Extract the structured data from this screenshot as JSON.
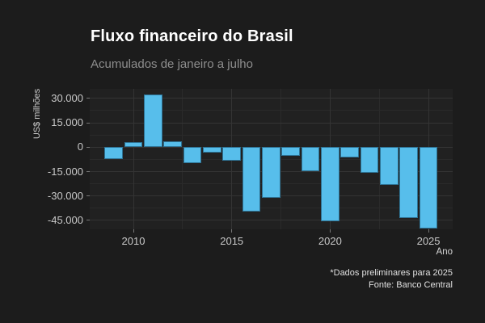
{
  "header": {
    "title": "Fluxo financeiro do Brasil",
    "subtitle": "Acumulados de janeiro a julho"
  },
  "footnote": {
    "line1": "*Dados preliminares para 2025",
    "line2": "Fonte: Banco Central"
  },
  "colors": {
    "bar": "#57beeb",
    "background": "#1c1c1c",
    "panel": "#212121",
    "grid_major": "#343434",
    "grid_minor": "#2a2a2a",
    "title_text": "#ffffff",
    "subtitle_text": "#8d8d8d",
    "axis_text": "#c9c9c9"
  },
  "chart_data": {
    "type": "bar",
    "title": "Fluxo financeiro do Brasil",
    "subtitle": "Acumulados de janeiro a julho",
    "xlabel": "Ano",
    "ylabel": "US$ milhões",
    "x": [
      2009,
      2010,
      2011,
      2012,
      2013,
      2014,
      2015,
      2016,
      2017,
      2018,
      2019,
      2020,
      2021,
      2022,
      2023,
      2024,
      2025
    ],
    "values": [
      -7500,
      3000,
      32500,
      3500,
      -9800,
      -3500,
      -8500,
      -39800,
      -31300,
      -5200,
      -14700,
      -45700,
      -6500,
      -15500,
      -23000,
      -43500,
      -50000
    ],
    "unit": "US$ milhões",
    "ylim": [
      -50500,
      35900
    ],
    "xlim": [
      2007.78,
      2026.23
    ],
    "grid": true,
    "legend": "none",
    "yticks": [
      {
        "v": 30000,
        "label": "30.000"
      },
      {
        "v": 15000,
        "label": "15.000"
      },
      {
        "v": 0,
        "label": "0"
      },
      {
        "v": -15000,
        "label": "-15.000"
      },
      {
        "v": -30000,
        "label": "-30.000"
      },
      {
        "v": -45000,
        "label": "-45.000"
      }
    ],
    "yticks_minor": [
      22500,
      7500,
      -7500,
      -22500,
      -37500
    ],
    "xticks": [
      {
        "v": 2010,
        "label": "2010"
      },
      {
        "v": 2015,
        "label": "2015"
      },
      {
        "v": 2020,
        "label": "2020"
      },
      {
        "v": 2025,
        "label": "2025"
      }
    ],
    "xticks_minor": [
      2012.5,
      2017.5,
      2022.5
    ]
  }
}
